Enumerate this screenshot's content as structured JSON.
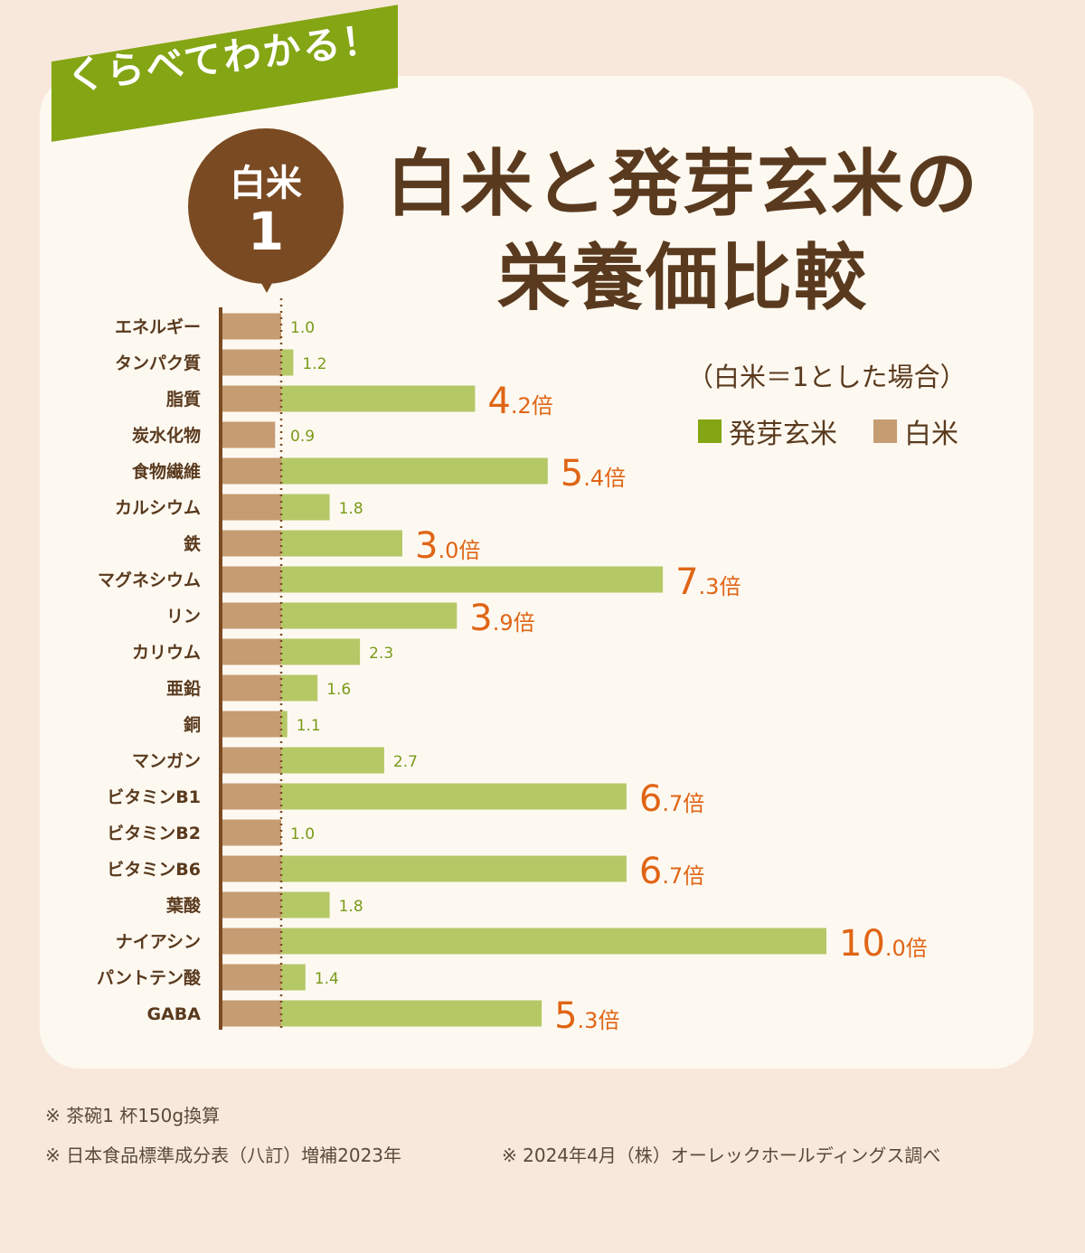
{
  "banner": {
    "text": "くらべてわかる！"
  },
  "pin": {
    "label": "白米",
    "value": "1"
  },
  "title": {
    "line1": "白米と発芽玄米の",
    "line2": "栄養価比較"
  },
  "subtitle": "（白米＝1とした場合）",
  "legend": {
    "brown_rice": "発芽玄米",
    "white_rice": "白米"
  },
  "colors": {
    "brown_rice": "#b5c866",
    "white_rice": "#c69c72",
    "highlight": "#e06515",
    "small_label": "#7a9a18",
    "axis": "#7a4a22",
    "banner": "#84a514"
  },
  "chart_data": {
    "type": "bar",
    "orientation": "horizontal",
    "unit_suffix": "倍",
    "categories": [
      "エネルギー",
      "タンパク質",
      "脂質",
      "炭水化物",
      "食物繊維",
      "カルシウム",
      "鉄",
      "マグネシウム",
      "リン",
      "カリウム",
      "亜鉛",
      "銅",
      "マンガン",
      "ビタミンB1",
      "ビタミンB2",
      "ビタミンB6",
      "葉酸",
      "ナイアシン",
      "パントテン酸",
      "GABA"
    ],
    "series": [
      {
        "name": "白米",
        "values": [
          1,
          1,
          1,
          1,
          1,
          1,
          1,
          1,
          1,
          1,
          1,
          1,
          1,
          1,
          1,
          1,
          1,
          1,
          1,
          1
        ]
      },
      {
        "name": "発芽玄米",
        "values": [
          1.0,
          1.2,
          4.2,
          0.9,
          5.4,
          1.8,
          3.0,
          7.3,
          3.9,
          2.3,
          1.6,
          1.1,
          2.7,
          6.7,
          1.0,
          6.7,
          1.8,
          10.0,
          1.4,
          5.3
        ]
      }
    ],
    "labels": [
      "1.0",
      "1.2",
      "4.2",
      "0.9",
      "5.4",
      "1.8",
      "3.0",
      "7.3",
      "3.9",
      "2.3",
      "1.6",
      "1.1",
      "2.7",
      "6.7",
      "1.0",
      "6.7",
      "1.8",
      "10.0",
      "1.4",
      "5.3"
    ],
    "highlight": [
      false,
      false,
      true,
      false,
      true,
      false,
      true,
      true,
      true,
      false,
      false,
      false,
      false,
      true,
      false,
      true,
      false,
      true,
      false,
      true
    ],
    "xlim": [
      0,
      10
    ]
  },
  "footnotes": {
    "note1": "※ 茶碗1 杯150g換算",
    "note2": "※ 日本食品標準成分表（八訂）増補2023年",
    "note3": "※ 2024年4月（株）オーレックホールディングス調べ"
  }
}
